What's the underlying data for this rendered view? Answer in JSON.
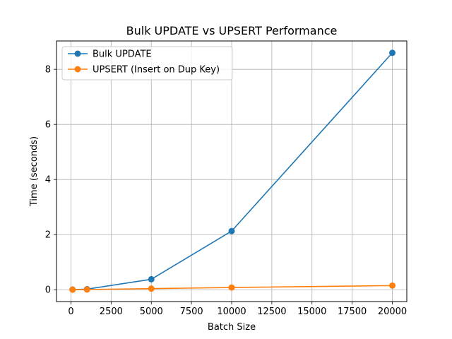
{
  "chart_data": {
    "type": "line",
    "title": "Bulk UPDATE vs UPSERT Performance",
    "xlabel": "Batch Size",
    "ylabel": "Time (seconds)",
    "xlim": [
      -900,
      20900
    ],
    "ylim": [
      -0.43,
      9.03
    ],
    "xticks": [
      0,
      2500,
      5000,
      7500,
      10000,
      12500,
      15000,
      17500,
      20000
    ],
    "yticks": [
      0,
      2,
      4,
      6,
      8
    ],
    "grid": true,
    "legend": "upper-left",
    "series": [
      {
        "name": "Bulk UPDATE",
        "color": "#1f77b4",
        "x": [
          100,
          1000,
          5000,
          10000,
          20000
        ],
        "y": [
          0.005,
          0.02,
          0.38,
          2.13,
          8.6
        ]
      },
      {
        "name": "UPSERT (Insert on Dup Key)",
        "color": "#ff7f0e",
        "x": [
          100,
          1000,
          5000,
          10000,
          20000
        ],
        "y": [
          0.002,
          0.008,
          0.04,
          0.08,
          0.15
        ]
      }
    ]
  }
}
